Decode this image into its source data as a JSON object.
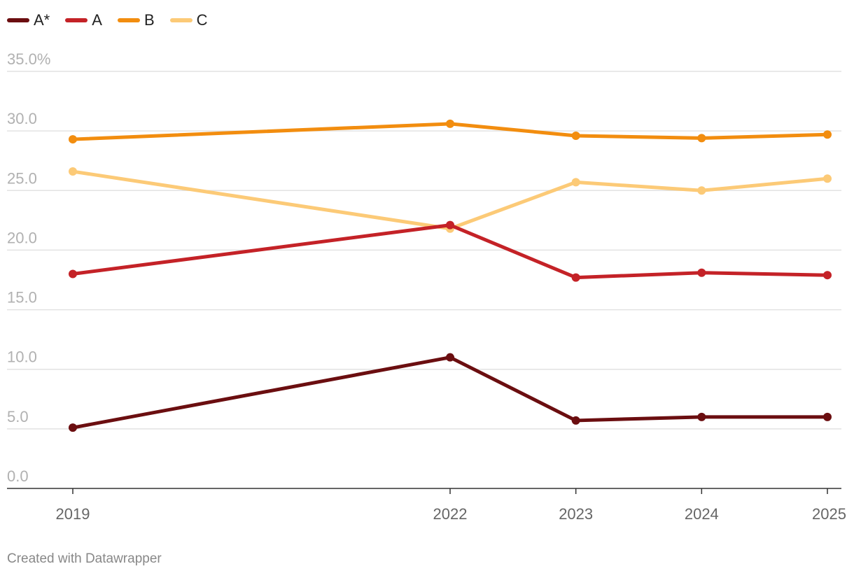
{
  "chart_data": {
    "type": "line",
    "title": "",
    "xlabel": "",
    "ylabel": "",
    "x": [
      "2019",
      "2022",
      "2023",
      "2024",
      "2025"
    ],
    "x_numeric": [
      2019,
      2022,
      2023,
      2024,
      2025
    ],
    "ylim": [
      0,
      35
    ],
    "y_ticks": [
      0,
      5,
      10,
      15,
      20,
      25,
      30,
      35
    ],
    "y_tick_labels": [
      "0.0",
      "5.0",
      "10.0",
      "15.0",
      "20.0",
      "25.0",
      "30.0",
      "35.0%"
    ],
    "grid": true,
    "legend_position": "top-left",
    "series": [
      {
        "name": "A*",
        "color": "#6b0e10",
        "values": [
          5.1,
          11.0,
          5.7,
          6.0,
          6.0
        ]
      },
      {
        "name": "A",
        "color": "#c42227",
        "values": [
          18.0,
          22.1,
          17.7,
          18.1,
          17.9
        ]
      },
      {
        "name": "B",
        "color": "#f28d0f",
        "values": [
          29.3,
          30.6,
          29.6,
          29.4,
          29.7
        ]
      },
      {
        "name": "C",
        "color": "#fcca77",
        "values": [
          26.6,
          21.8,
          25.7,
          25.0,
          26.0
        ]
      }
    ]
  },
  "footer": {
    "credit": "Created with Datawrapper"
  }
}
